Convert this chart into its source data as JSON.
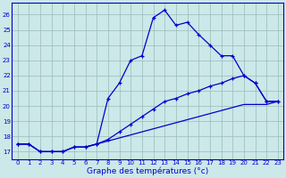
{
  "xlabel": "Graphe des températures (°c)",
  "hours": [
    0,
    1,
    2,
    3,
    4,
    5,
    6,
    7,
    8,
    9,
    10,
    11,
    12,
    13,
    14,
    15,
    16,
    17,
    18,
    19,
    20,
    21,
    22,
    23
  ],
  "line1": [
    17.5,
    17.5,
    17.0,
    17.0,
    17.0,
    17.3,
    17.3,
    17.5,
    20.5,
    21.5,
    23.0,
    23.3,
    25.8,
    26.3,
    25.3,
    25.5,
    24.7,
    24.0,
    23.3,
    23.3,
    22.0,
    21.5,
    20.3,
    20.3
  ],
  "line2": [
    17.5,
    17.5,
    17.0,
    17.0,
    17.0,
    17.3,
    17.3,
    17.5,
    17.8,
    18.3,
    18.8,
    19.3,
    19.8,
    20.3,
    20.5,
    20.8,
    21.0,
    21.3,
    21.5,
    21.8,
    22.0,
    21.5,
    20.3,
    20.3
  ],
  "line3": [
    17.5,
    17.5,
    17.0,
    17.0,
    17.0,
    17.3,
    17.3,
    17.5,
    17.7,
    17.9,
    18.1,
    18.3,
    18.5,
    18.7,
    18.9,
    19.1,
    19.3,
    19.5,
    19.7,
    19.9,
    20.1,
    20.1,
    20.1,
    20.3
  ],
  "line_color": "#0000cc",
  "bg_color": "#cce8e8",
  "grid_color": "#99bbbb",
  "ymin": 16.5,
  "ymax": 26.8,
  "yticks": [
    17,
    18,
    19,
    20,
    21,
    22,
    23,
    24,
    25,
    26
  ],
  "xticks": [
    0,
    1,
    2,
    3,
    4,
    5,
    6,
    7,
    8,
    9,
    10,
    11,
    12,
    13,
    14,
    15,
    16,
    17,
    18,
    19,
    20,
    21,
    22,
    23
  ]
}
